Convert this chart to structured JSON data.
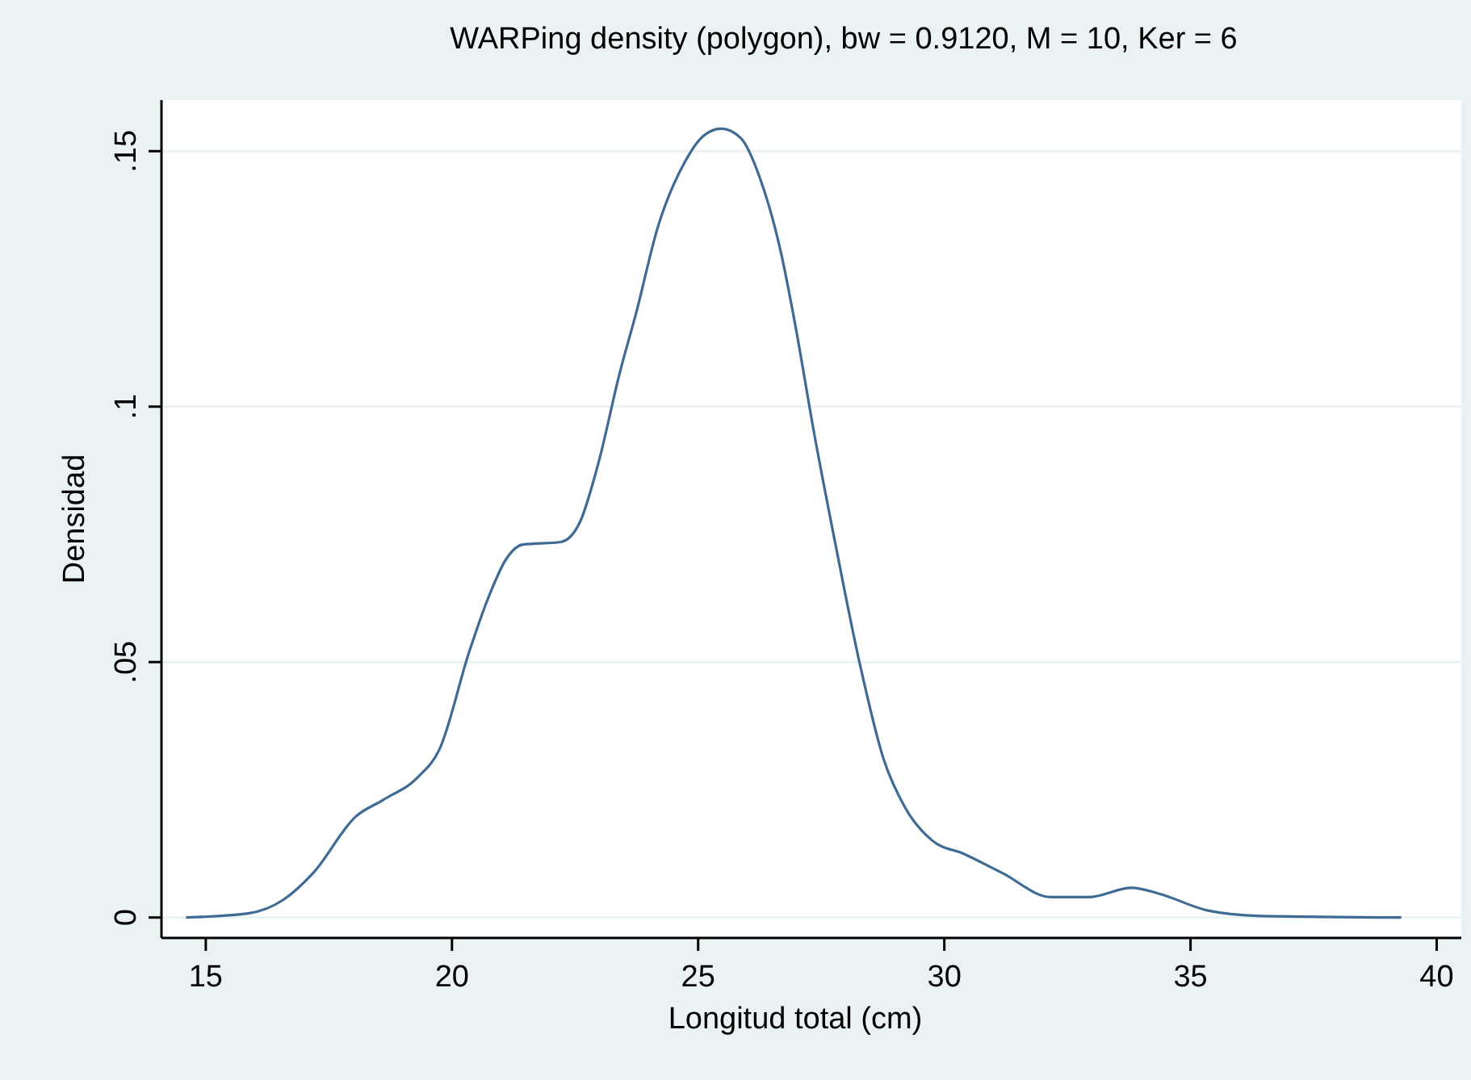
{
  "chart_data": {
    "type": "line",
    "title": "WARPing density (polygon), bw = 0.9120, M = 10, Ker = 6",
    "xlabel": "Longitud total (cm)",
    "ylabel": "Densidad",
    "xlim": [
      14.1,
      40.5
    ],
    "xticks": [
      15,
      20,
      25,
      30,
      35,
      40
    ],
    "ylim": [
      -0.004,
      0.16
    ],
    "yticks": [
      {
        "value": 0,
        "label": "0"
      },
      {
        "value": 0.05,
        "label": ".05"
      },
      {
        "value": 0.1,
        "label": ".1"
      },
      {
        "value": 0.15,
        "label": ".15"
      }
    ],
    "grid": "y",
    "marker": "none",
    "line_style": "solid",
    "series": [
      {
        "color": "#3e6a93",
        "x": [
          14.6,
          15.86,
          16.58,
          17.18,
          18.05,
          18.6,
          19.31,
          19.75,
          20.35,
          20.73,
          21.11,
          21.44,
          22.21,
          22.59,
          22.97,
          23.41,
          23.74,
          24.18,
          24.72,
          25.11,
          25.47,
          25.87,
          26.26,
          26.69,
          26.97,
          27.35,
          27.79,
          28.28,
          28.77,
          29.21,
          29.75,
          30.41,
          31.18,
          32.16,
          32.93,
          33.8,
          34.35,
          35.34,
          36.43,
          39.28
        ],
        "values": [
          0,
          0.0008,
          0.0035,
          0.0087,
          0.0198,
          0.023,
          0.0275,
          0.033,
          0.052,
          0.0624,
          0.0703,
          0.073,
          0.0735,
          0.0772,
          0.0888,
          0.1067,
          0.1183,
          0.1351,
          0.1477,
          0.153,
          0.1544,
          0.1525,
          0.1446,
          0.1298,
          0.1161,
          0.0951,
          0.073,
          0.0498,
          0.0309,
          0.0214,
          0.0151,
          0.0124,
          0.0087,
          0.004,
          0.004,
          0.0058,
          0.0047,
          0.0014,
          0.0003,
          0
        ]
      }
    ]
  }
}
